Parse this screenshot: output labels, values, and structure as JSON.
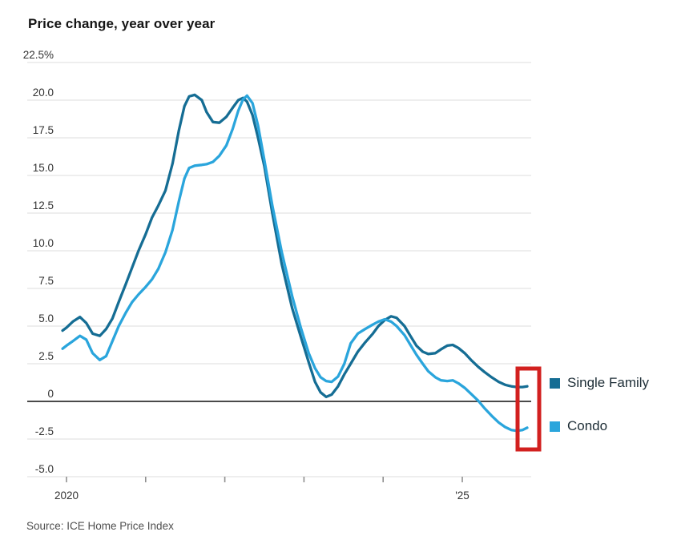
{
  "header": {
    "title": "Price change, year over year"
  },
  "source": {
    "text": "Source: ICE Home Price Index"
  },
  "legend": [
    {
      "label": "Single Family",
      "color": "#156d94"
    },
    {
      "label": "Condo",
      "color": "#2aa5dc"
    }
  ],
  "annotation": {
    "highlight_box_color": "#d2201f"
  },
  "chart_data": {
    "type": "line",
    "title": "Price change, year over year",
    "unit": "percent year-over-year",
    "grid": "horizontal",
    "legend_position": "right",
    "x_axis": {
      "range": [
        2019.9,
        2025.95
      ],
      "ticks": [
        2020,
        2021,
        2022,
        2023,
        2024,
        2025
      ],
      "tick_labels": [
        "2020",
        "",
        "",
        "",
        "",
        "'25"
      ]
    },
    "y_axis": {
      "range": [
        -5.5,
        23
      ],
      "ticks": [
        22.5,
        20,
        17.5,
        15,
        12.5,
        10,
        7.5,
        5,
        2.5,
        0,
        -2.5,
        -5
      ],
      "tick_labels": [
        "22.5%",
        "20.0",
        "17.5",
        "15.0",
        "12.5",
        "10.0",
        "7.5",
        "5.0",
        "2.5",
        "0",
        "-2.5",
        "-5.0"
      ]
    },
    "series": [
      {
        "name": "Single Family",
        "color": "#156d94",
        "points": [
          [
            2019.95,
            4.7
          ],
          [
            2020.0,
            4.9
          ],
          [
            2020.08,
            5.3
          ],
          [
            2020.17,
            5.6
          ],
          [
            2020.25,
            5.2
          ],
          [
            2020.33,
            4.5
          ],
          [
            2020.42,
            4.35
          ],
          [
            2020.5,
            4.8
          ],
          [
            2020.58,
            5.5
          ],
          [
            2020.66,
            6.6
          ],
          [
            2020.75,
            7.8
          ],
          [
            2020.83,
            8.9
          ],
          [
            2020.91,
            10.0
          ],
          [
            2021.0,
            11.1
          ],
          [
            2021.08,
            12.2
          ],
          [
            2021.16,
            13.0
          ],
          [
            2021.25,
            14.0
          ],
          [
            2021.34,
            15.8
          ],
          [
            2021.42,
            18.0
          ],
          [
            2021.49,
            19.6
          ],
          [
            2021.55,
            20.25
          ],
          [
            2021.62,
            20.35
          ],
          [
            2021.71,
            20.0
          ],
          [
            2021.77,
            19.2
          ],
          [
            2021.85,
            18.55
          ],
          [
            2021.93,
            18.5
          ],
          [
            2022.02,
            18.9
          ],
          [
            2022.1,
            19.5
          ],
          [
            2022.17,
            20.0
          ],
          [
            2022.23,
            20.15
          ],
          [
            2022.28,
            19.9
          ],
          [
            2022.35,
            19.0
          ],
          [
            2022.42,
            17.5
          ],
          [
            2022.5,
            15.6
          ],
          [
            2022.6,
            12.5
          ],
          [
            2022.72,
            9.1
          ],
          [
            2022.85,
            6.2
          ],
          [
            2022.96,
            4.3
          ],
          [
            2023.06,
            2.6
          ],
          [
            2023.14,
            1.3
          ],
          [
            2023.21,
            0.6
          ],
          [
            2023.28,
            0.3
          ],
          [
            2023.35,
            0.45
          ],
          [
            2023.43,
            1.0
          ],
          [
            2023.51,
            1.8
          ],
          [
            2023.59,
            2.5
          ],
          [
            2023.68,
            3.3
          ],
          [
            2023.77,
            3.9
          ],
          [
            2023.87,
            4.5
          ],
          [
            2023.94,
            5.0
          ],
          [
            2024.02,
            5.4
          ],
          [
            2024.1,
            5.65
          ],
          [
            2024.17,
            5.55
          ],
          [
            2024.27,
            5.0
          ],
          [
            2024.35,
            4.3
          ],
          [
            2024.42,
            3.7
          ],
          [
            2024.5,
            3.3
          ],
          [
            2024.57,
            3.15
          ],
          [
            2024.66,
            3.2
          ],
          [
            2024.73,
            3.45
          ],
          [
            2024.81,
            3.7
          ],
          [
            2024.88,
            3.75
          ],
          [
            2024.95,
            3.55
          ],
          [
            2025.03,
            3.2
          ],
          [
            2025.11,
            2.75
          ],
          [
            2025.2,
            2.3
          ],
          [
            2025.28,
            1.95
          ],
          [
            2025.37,
            1.6
          ],
          [
            2025.46,
            1.3
          ],
          [
            2025.54,
            1.1
          ],
          [
            2025.62,
            1.0
          ],
          [
            2025.69,
            0.95
          ],
          [
            2025.76,
            0.95
          ],
          [
            2025.82,
            1.0
          ]
        ]
      },
      {
        "name": "Condo",
        "color": "#2aa5dc",
        "points": [
          [
            2019.95,
            3.5
          ],
          [
            2020.0,
            3.7
          ],
          [
            2020.08,
            4.0
          ],
          [
            2020.17,
            4.35
          ],
          [
            2020.25,
            4.1
          ],
          [
            2020.33,
            3.2
          ],
          [
            2020.42,
            2.75
          ],
          [
            2020.5,
            3.0
          ],
          [
            2020.58,
            4.0
          ],
          [
            2020.66,
            5.0
          ],
          [
            2020.75,
            5.9
          ],
          [
            2020.83,
            6.6
          ],
          [
            2020.91,
            7.1
          ],
          [
            2021.0,
            7.6
          ],
          [
            2021.08,
            8.1
          ],
          [
            2021.16,
            8.8
          ],
          [
            2021.25,
            9.9
          ],
          [
            2021.34,
            11.4
          ],
          [
            2021.42,
            13.3
          ],
          [
            2021.49,
            14.8
          ],
          [
            2021.55,
            15.5
          ],
          [
            2021.62,
            15.65
          ],
          [
            2021.71,
            15.7
          ],
          [
            2021.77,
            15.75
          ],
          [
            2021.85,
            15.9
          ],
          [
            2021.93,
            16.3
          ],
          [
            2022.02,
            17.0
          ],
          [
            2022.1,
            18.1
          ],
          [
            2022.17,
            19.3
          ],
          [
            2022.23,
            20.05
          ],
          [
            2022.28,
            20.3
          ],
          [
            2022.35,
            19.8
          ],
          [
            2022.42,
            18.3
          ],
          [
            2022.5,
            16.0
          ],
          [
            2022.6,
            13.0
          ],
          [
            2022.72,
            9.9
          ],
          [
            2022.85,
            7.0
          ],
          [
            2022.96,
            4.9
          ],
          [
            2023.06,
            3.2
          ],
          [
            2023.14,
            2.2
          ],
          [
            2023.21,
            1.6
          ],
          [
            2023.28,
            1.35
          ],
          [
            2023.35,
            1.3
          ],
          [
            2023.43,
            1.65
          ],
          [
            2023.51,
            2.5
          ],
          [
            2023.59,
            3.85
          ],
          [
            2023.68,
            4.5
          ],
          [
            2023.77,
            4.8
          ],
          [
            2023.87,
            5.1
          ],
          [
            2023.94,
            5.3
          ],
          [
            2024.02,
            5.45
          ],
          [
            2024.1,
            5.3
          ],
          [
            2024.17,
            5.0
          ],
          [
            2024.27,
            4.4
          ],
          [
            2024.35,
            3.7
          ],
          [
            2024.42,
            3.1
          ],
          [
            2024.5,
            2.5
          ],
          [
            2024.57,
            2.0
          ],
          [
            2024.66,
            1.6
          ],
          [
            2024.73,
            1.4
          ],
          [
            2024.81,
            1.35
          ],
          [
            2024.88,
            1.4
          ],
          [
            2024.95,
            1.2
          ],
          [
            2025.03,
            0.9
          ],
          [
            2025.11,
            0.5
          ],
          [
            2025.2,
            0.05
          ],
          [
            2025.28,
            -0.45
          ],
          [
            2025.37,
            -0.95
          ],
          [
            2025.46,
            -1.4
          ],
          [
            2025.54,
            -1.7
          ],
          [
            2025.62,
            -1.9
          ],
          [
            2025.69,
            -1.95
          ],
          [
            2025.76,
            -1.9
          ],
          [
            2025.82,
            -1.75
          ]
        ]
      }
    ]
  }
}
